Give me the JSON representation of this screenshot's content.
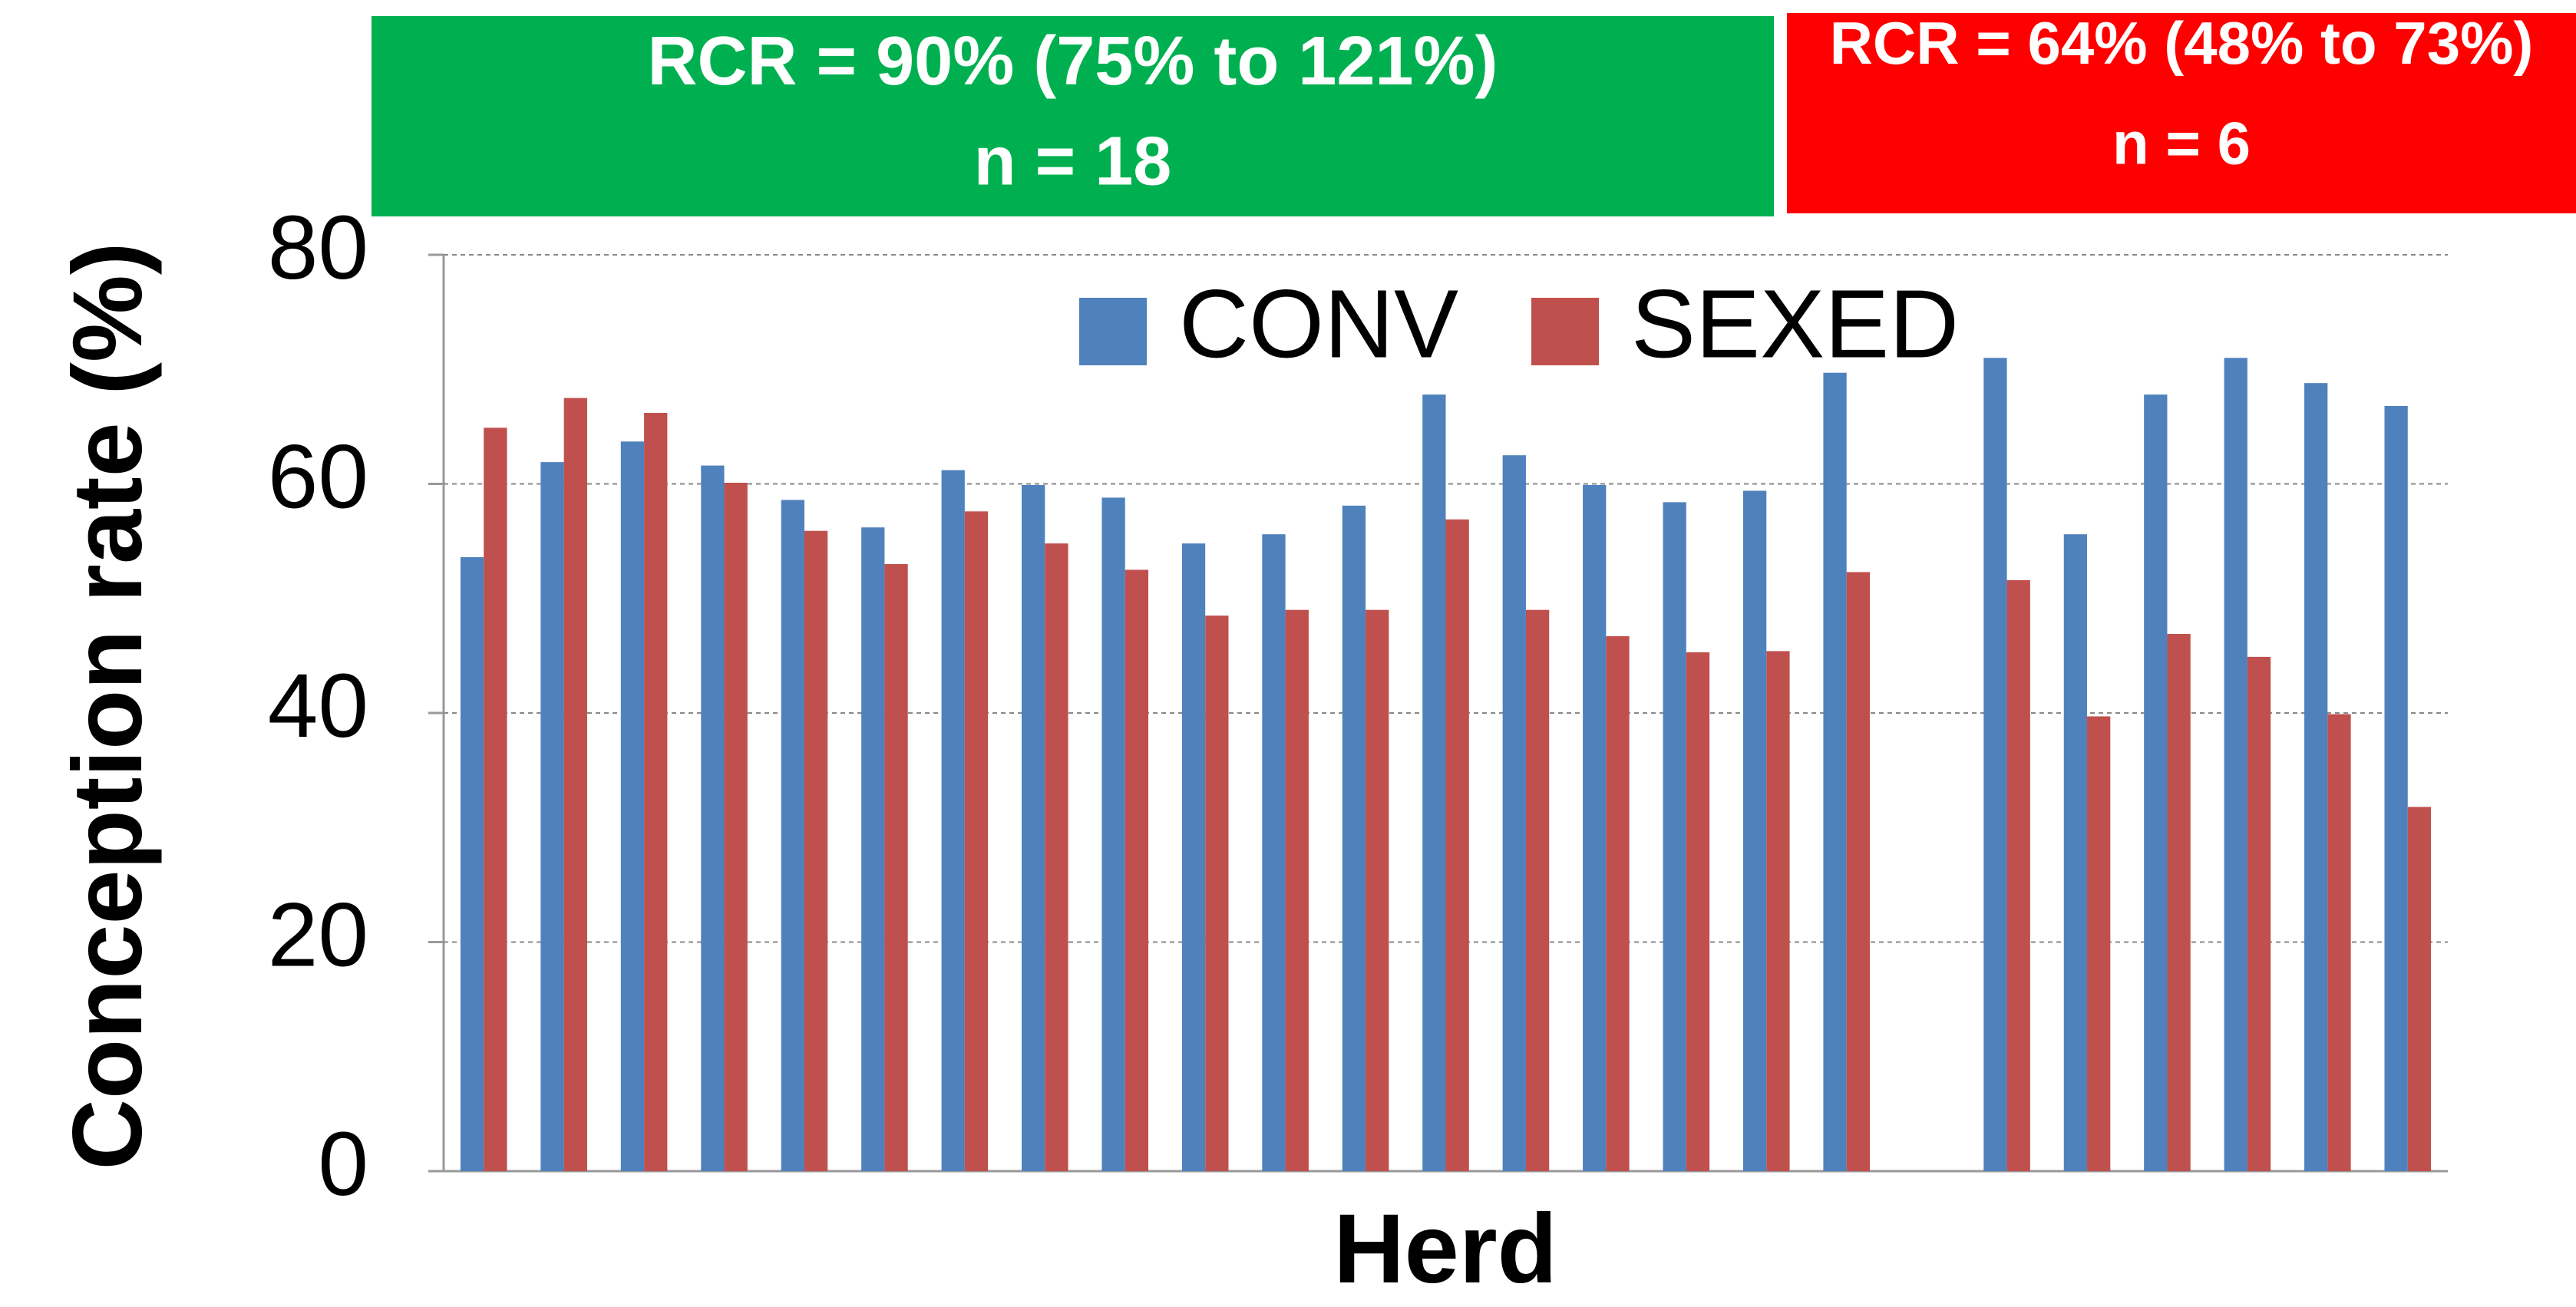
{
  "chart_data": {
    "type": "bar",
    "x_label": "Herd",
    "y_label": "Conception rate (%)",
    "categories": [
      null,
      null,
      null,
      null,
      null,
      null,
      null,
      null,
      null,
      null,
      null,
      null,
      null,
      null,
      null,
      null,
      null,
      null,
      null,
      null,
      null,
      null,
      null,
      null,
      null
    ],
    "series": [
      {
        "name": "CONV",
        "color": "#4f81bd",
        "values": [
          53.6,
          61.9,
          63.7,
          61.6,
          58.6,
          56.2,
          61.2,
          59.9,
          58.8,
          54.8,
          55.6,
          58.1,
          67.8,
          62.5,
          59.9,
          58.4,
          59.4,
          69.7,
          null,
          71.0,
          55.6,
          67.8,
          71.0,
          68.8,
          66.8
        ]
      },
      {
        "name": "SEXED",
        "color": "#c0504d",
        "values": [
          64.9,
          67.5,
          66.2,
          60.1,
          55.9,
          53.0,
          57.6,
          54.8,
          52.5,
          48.5,
          49.0,
          49.0,
          56.9,
          49.0,
          46.7,
          45.3,
          45.4,
          52.3,
          null,
          51.6,
          39.7,
          46.9,
          44.9,
          39.9,
          31.8
        ]
      }
    ],
    "ylim": [
      0,
      80
    ],
    "yticks": [
      0,
      20,
      40,
      60,
      80
    ],
    "grid": true,
    "legend": "top",
    "annotations": [
      {
        "lines": [
          "RCR = 90% (75% to 121%)",
          "n = 18"
        ],
        "color": "#00b050"
      },
      {
        "lines": [
          "RCR = 64% (48% to 73%)",
          "n = 6"
        ],
        "color": "#ff0000"
      }
    ]
  }
}
